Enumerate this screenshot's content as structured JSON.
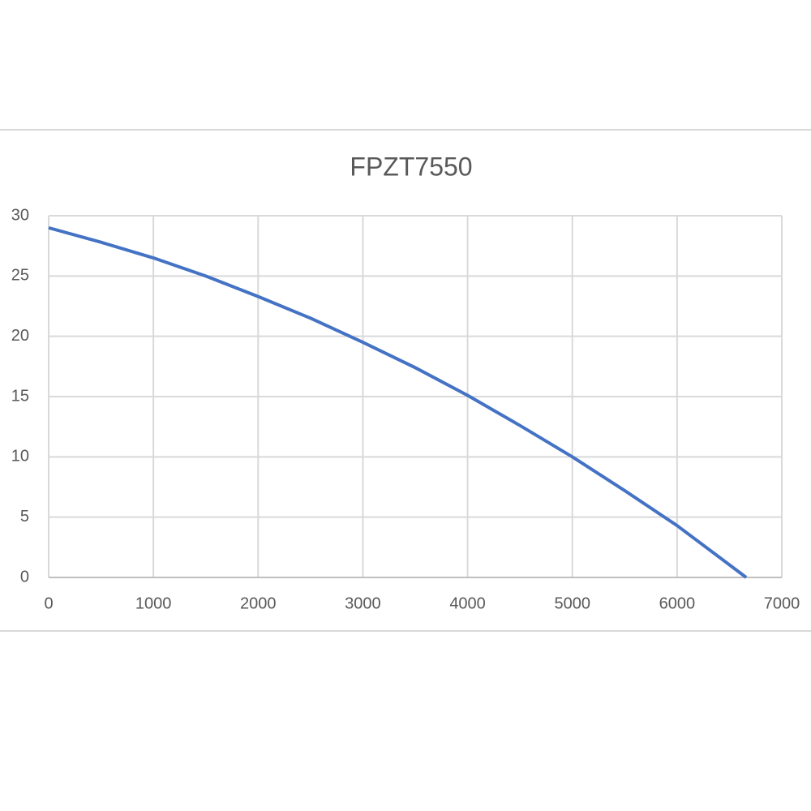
{
  "chart_data": {
    "type": "line",
    "title": "FPZT7550",
    "x": [
      0,
      500,
      1000,
      1500,
      2000,
      2500,
      3000,
      3500,
      4000,
      4500,
      5000,
      5500,
      6000,
      6660
    ],
    "series": [
      {
        "name": "FPZT7550",
        "color": "#4472c4",
        "values": [
          29,
          27.8,
          26.5,
          25.0,
          23.3,
          21.5,
          19.5,
          17.4,
          15.1,
          12.6,
          10.0,
          7.2,
          4.3,
          0
        ]
      }
    ],
    "xlim": [
      0,
      7000
    ],
    "xticks": [
      0,
      1000,
      2000,
      3000,
      4000,
      5000,
      6000,
      7000
    ],
    "ylim": [
      0,
      30
    ],
    "yticks": [
      0,
      5,
      10,
      15,
      20,
      25,
      30
    ],
    "grid": true
  }
}
